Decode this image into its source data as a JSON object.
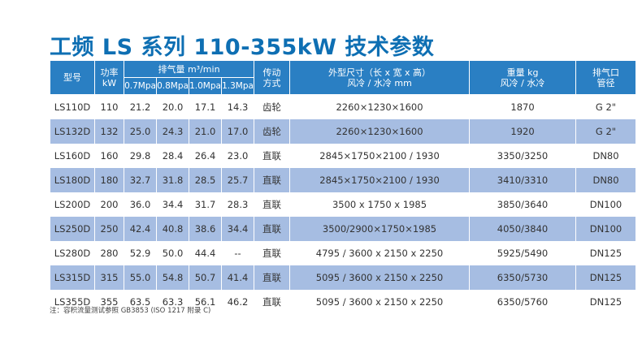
{
  "title": "工频 LS 系列 110-355kW 技术参数",
  "table": {
    "headers": {
      "model": "型号",
      "power": [
        "功率",
        "kW"
      ],
      "displacement": "排气量 m³/min",
      "pressures": [
        "0.7Mpa",
        "0.8Mpa",
        "1.0Mpa",
        "1.3Mpa"
      ],
      "drive": [
        "传动",
        "方式"
      ],
      "dimensions": [
        "外型尺寸（长 x 宽 x 高）",
        "风冷 / 水冷 mm"
      ],
      "weight": [
        "重量 kg",
        "风冷 / 水冷"
      ],
      "outlet": [
        "排气口",
        "管径"
      ]
    },
    "rows": [
      {
        "model": "LS110D",
        "power": "110",
        "p07": "21.2",
        "p08": "20.0",
        "p10": "17.1",
        "p13": "14.3",
        "drive": "齿轮",
        "dims": "2260×1230×1600",
        "weight": "1870",
        "outlet": "G 2\""
      },
      {
        "model": "LS132D",
        "power": "132",
        "p07": "25.0",
        "p08": "24.3",
        "p10": "21.0",
        "p13": "17.0",
        "drive": "齿轮",
        "dims": "2260×1230×1600",
        "weight": "1920",
        "outlet": "G 2\""
      },
      {
        "model": "LS160D",
        "power": "160",
        "p07": "29.8",
        "p08": "28.4",
        "p10": "26.4",
        "p13": "23.0",
        "drive": "直联",
        "dims": "2845×1750×2100 / 1930",
        "weight": "3350/3250",
        "outlet": "DN80"
      },
      {
        "model": "LS180D",
        "power": "180",
        "p07": "32.7",
        "p08": "31.8",
        "p10": "28.5",
        "p13": "25.7",
        "drive": "直联",
        "dims": "2845×1750×2100 / 1930",
        "weight": "3410/3310",
        "outlet": "DN80"
      },
      {
        "model": "LS200D",
        "power": "200",
        "p07": "36.0",
        "p08": "34.4",
        "p10": "31.7",
        "p13": "28.3",
        "drive": "直联",
        "dims": "3500 x 1750 x 1985",
        "weight": "3850/3640",
        "outlet": "DN100"
      },
      {
        "model": "LS250D",
        "power": "250",
        "p07": "42.4",
        "p08": "40.8",
        "p10": "38.6",
        "p13": "34.4",
        "drive": "直联",
        "dims": "3500/2900×1750×1985",
        "weight": "4050/3840",
        "outlet": "DN100"
      },
      {
        "model": "LS280D",
        "power": "280",
        "p07": "52.9",
        "p08": "50.0",
        "p10": "44.4",
        "p13": "--",
        "drive": "直联",
        "dims": "4795 / 3600 x 2150 x 2250",
        "weight": "5925/5490",
        "outlet": "DN125"
      },
      {
        "model": "LS315D",
        "power": "315",
        "p07": "55.0",
        "p08": "54.8",
        "p10": "50.7",
        "p13": "41.4",
        "drive": "直联",
        "dims": "5095 / 3600 x 2150 x 2250",
        "weight": "6350/5730",
        "outlet": "DN125"
      },
      {
        "model": "LS355D",
        "power": "355",
        "p07": "63.5",
        "p08": "63.3",
        "p10": "56.1",
        "p13": "46.2",
        "drive": "直联",
        "dims": "5095 / 3600 x 2150 x 2250",
        "weight": "6350/5760",
        "outlet": "DN125"
      }
    ]
  },
  "footnote": "注：容积流量测试参照 GB3853 (ISO 1217 附录 C)",
  "colors": {
    "title": "#0e6fb3",
    "header_bg": "#2a7fc3",
    "alt_row": "#a6bde2"
  }
}
